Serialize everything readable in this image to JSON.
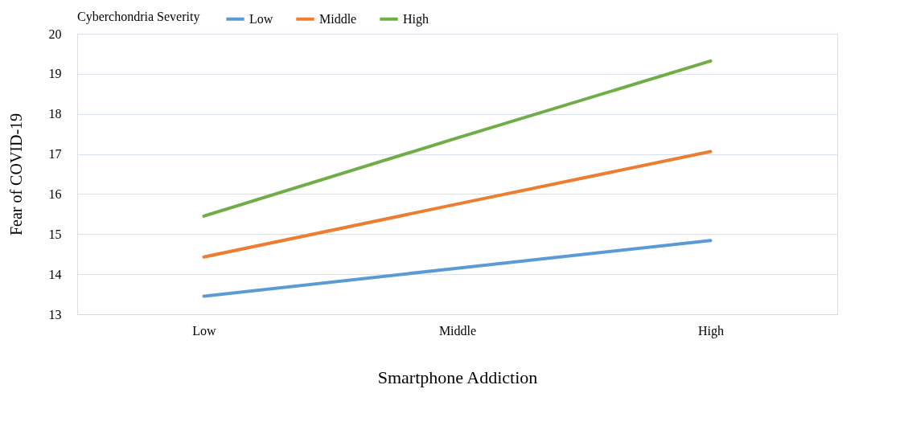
{
  "chart_data": {
    "type": "line",
    "xlabel": "Smartphone Addiction",
    "ylabel": "Fear of COVID-19",
    "legend_title": "Cyberchondria Severity",
    "categories": [
      "Low",
      "Middle",
      "High"
    ],
    "series": [
      {
        "name": "Low",
        "color": "#5b9bd5",
        "values": [
          13.45,
          14.15,
          14.84
        ]
      },
      {
        "name": "Middle",
        "color": "#ed7d31",
        "values": [
          14.43,
          15.75,
          17.06
        ]
      },
      {
        "name": "High",
        "color": "#70ad47",
        "values": [
          15.45,
          17.4,
          19.32
        ]
      }
    ],
    "ylim": [
      13,
      20
    ],
    "yticks": [
      13,
      14,
      15,
      16,
      17,
      18,
      19,
      20
    ],
    "grid": "y",
    "legend": "top",
    "marker": "none",
    "line_style": "solid"
  }
}
